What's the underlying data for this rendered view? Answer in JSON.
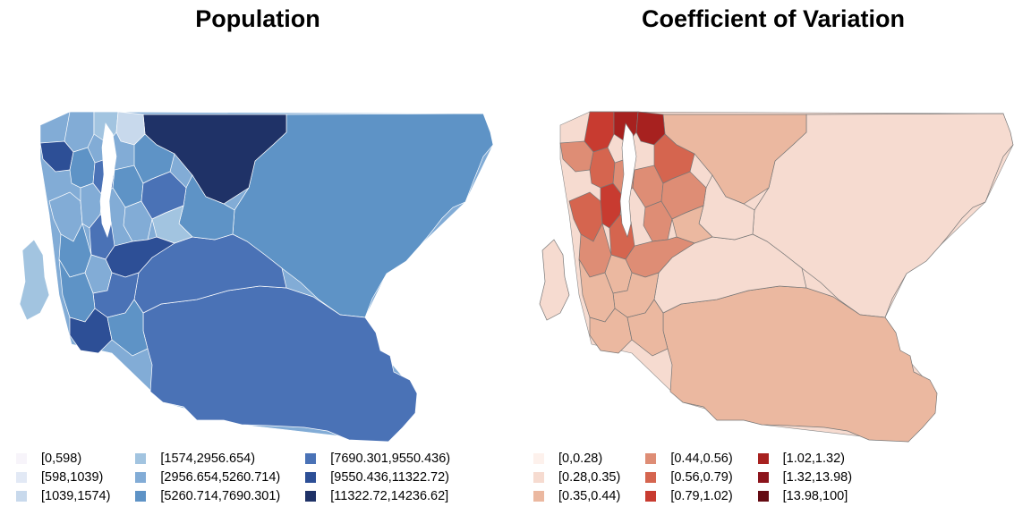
{
  "panels": [
    {
      "title": "Population",
      "palette": [
        "#f7f4fa",
        "#e2e9f5",
        "#c8d9ec",
        "#a2c4e0",
        "#82acd6",
        "#5e93c6",
        "#4a72b6",
        "#2d4f96",
        "#1f3267"
      ],
      "legend": [
        "[0,598)",
        "[598,1039)",
        "[1039,1574)",
        "[1574,2956.654)",
        "[2956.654,5260.714)",
        "[5260.714,7690.301)",
        "[7690.301,9550.436)",
        "[9550.436,11322.72)",
        "[11322.72,14236.62]"
      ]
    },
    {
      "title": "Coefficient of Variation",
      "palette": [
        "#fdf1ec",
        "#f6dbd0",
        "#ebb8a0",
        "#de8d75",
        "#d5654f",
        "#c83b30",
        "#a7211f",
        "#8c141c",
        "#640a12"
      ],
      "legend": [
        "[0,0.28)",
        "[0.28,0.35)",
        "[0.35,0.44)",
        "[0.44,0.56)",
        "[0.56,0.79)",
        "[0.79,1.02)",
        "[1.02,1.32)",
        "[1.32,13.98)",
        "[13.98,100]"
      ]
    }
  ]
}
